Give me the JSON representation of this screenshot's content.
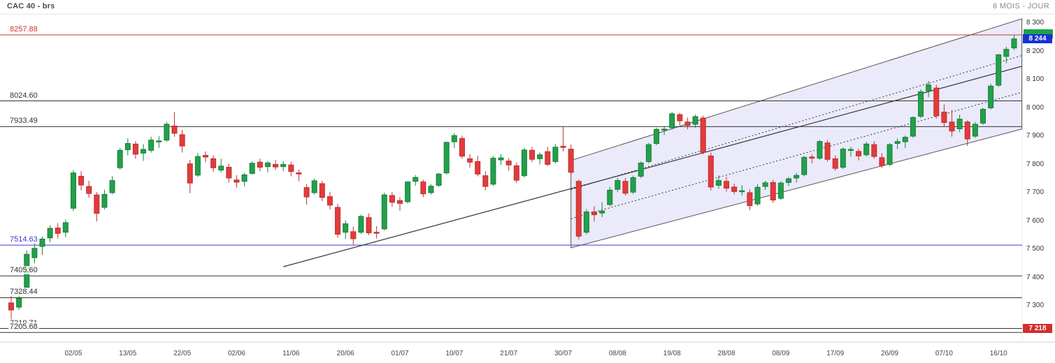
{
  "header": {
    "title": "CAC 40 - brs",
    "timeframe": "6 MOIS - JOUR"
  },
  "chart_data": {
    "type": "candlestick",
    "title": "CAC 40 - brs",
    "period": "6 MOIS",
    "interval": "JOUR",
    "last_price": 8244,
    "ylim": [
      7180,
      8310
    ],
    "colors": {
      "up": "#23a04a",
      "up_edge": "#17813b",
      "down": "#e23b3b",
      "down_edge": "#c02f2f"
    },
    "yticks": [
      {
        "label": "8 300",
        "value": 8300
      },
      {
        "label": "8 200",
        "value": 8200
      },
      {
        "label": "8 100",
        "value": 8100
      },
      {
        "label": "8 000",
        "value": 8000
      },
      {
        "label": "7 900",
        "value": 7900
      },
      {
        "label": "7 800",
        "value": 7800
      },
      {
        "label": "7 700",
        "value": 7700
      },
      {
        "label": "7 600",
        "value": 7600
      },
      {
        "label": "7 500",
        "value": 7500
      },
      {
        "label": "7 400",
        "value": 7400
      },
      {
        "label": "7 300",
        "value": 7300
      }
    ],
    "xticks": [
      "02/05",
      "13/05",
      "22/05",
      "02/06",
      "11/06",
      "20/06",
      "01/07",
      "10/07",
      "21/07",
      "30/07",
      "08/08",
      "19/08",
      "28/08",
      "08/09",
      "17/09",
      "26/09",
      "07/10",
      "16/10"
    ],
    "levels": [
      {
        "label": "8257.88",
        "value": 8257.88,
        "color": "#cc3333"
      },
      {
        "label": "8024.60",
        "value": 8024.6,
        "color": "#333333"
      },
      {
        "label": "7933.49",
        "value": 7933.49,
        "color": "#333333"
      },
      {
        "label": "7514.63",
        "value": 7514.63,
        "color": "#3a3acc"
      },
      {
        "label": "7405.60",
        "value": 7405.6,
        "color": "#333333"
      },
      {
        "label": "7328.44",
        "value": 7328.44,
        "color": "#333333"
      },
      {
        "label": "7219.71",
        "value": 7219.71,
        "color": "#333333"
      },
      {
        "label": "7205.68",
        "value": 7205.68,
        "color": "#333333"
      }
    ],
    "channel": {
      "i1": 72,
      "i2": 130,
      "bottom1": 7505,
      "top1": 7814,
      "bottom2": 7925,
      "top2": 8315,
      "dividers": [
        0.3333,
        0.6667
      ],
      "fill": "rgba(208,208,244,0.45)",
      "border": "#555555"
    },
    "trendline": {
      "i1": 35,
      "p1": 7438,
      "i2": 130,
      "p2": 8147,
      "color": "#333333"
    },
    "badges": {
      "last": {
        "label": "8 244",
        "value": 8244,
        "color": "#1532d6"
      },
      "low": {
        "label": "7 218",
        "value": 7218,
        "color": "#d22f2f"
      },
      "prev_marker": {
        "label": "",
        "value": 8262,
        "color": "#1ba24b"
      }
    },
    "candles": [
      [
        "17/04",
        7310,
        7335,
        7250,
        7285
      ],
      [
        "22/04",
        7295,
        7365,
        7285,
        7326
      ],
      [
        "23/04",
        7365,
        7495,
        7355,
        7482
      ],
      [
        "24/04",
        7470,
        7525,
        7450,
        7503
      ],
      [
        "25/04",
        7510,
        7545,
        7480,
        7536
      ],
      [
        "28/04",
        7540,
        7585,
        7525,
        7574
      ],
      [
        "29/04",
        7575,
        7592,
        7538,
        7556
      ],
      [
        "30/04",
        7560,
        7605,
        7542,
        7594
      ],
      [
        "02/05",
        7645,
        7780,
        7635,
        7770
      ],
      [
        "05/05",
        7758,
        7776,
        7708,
        7727
      ],
      [
        "06/05",
        7722,
        7742,
        7682,
        7697
      ],
      [
        "07/05",
        7692,
        7702,
        7598,
        7627
      ],
      [
        "08/05",
        7648,
        7710,
        7640,
        7694
      ],
      [
        "09/05",
        7700,
        7758,
        7694,
        7743
      ],
      [
        "12/05",
        7788,
        7858,
        7782,
        7850
      ],
      [
        "13/05",
        7852,
        7892,
        7832,
        7874
      ],
      [
        "14/05",
        7872,
        7882,
        7820,
        7836
      ],
      [
        "15/05",
        7840,
        7872,
        7812,
        7853
      ],
      [
        "16/05",
        7850,
        7898,
        7842,
        7886
      ],
      [
        "19/05",
        7880,
        7900,
        7858,
        7883
      ],
      [
        "20/05",
        7886,
        7950,
        7880,
        7942
      ],
      [
        "21/05",
        7936,
        7985,
        7898,
        7910
      ],
      [
        "22/05",
        7905,
        7922,
        7842,
        7865
      ],
      [
        "23/05",
        7802,
        7816,
        7698,
        7734
      ],
      [
        "26/05",
        7762,
        7840,
        7756,
        7828
      ],
      [
        "27/05",
        7832,
        7846,
        7808,
        7826
      ],
      [
        "28/05",
        7820,
        7832,
        7774,
        7788
      ],
      [
        "29/05",
        7780,
        7820,
        7772,
        7794
      ],
      [
        "30/05",
        7790,
        7802,
        7736,
        7752
      ],
      [
        "02/06",
        7745,
        7762,
        7718,
        7737
      ],
      [
        "03/06",
        7740,
        7770,
        7722,
        7763
      ],
      [
        "04/06",
        7768,
        7810,
        7764,
        7804
      ],
      [
        "05/06",
        7808,
        7820,
        7776,
        7790
      ],
      [
        "06/06",
        7792,
        7812,
        7772,
        7805
      ],
      [
        "09/06",
        7800,
        7816,
        7780,
        7791
      ],
      [
        "10/06",
        7792,
        7812,
        7776,
        7800
      ],
      [
        "11/06",
        7798,
        7810,
        7758,
        7775
      ],
      [
        "12/06",
        7770,
        7782,
        7740,
        7766
      ],
      [
        "13/06",
        7718,
        7730,
        7658,
        7685
      ],
      [
        "16/06",
        7700,
        7750,
        7694,
        7742
      ],
      [
        "17/06",
        7732,
        7742,
        7670,
        7683
      ],
      [
        "18/06",
        7686,
        7702,
        7640,
        7656
      ],
      [
        "19/06",
        7648,
        7660,
        7540,
        7553
      ],
      [
        "20/06",
        7560,
        7602,
        7536,
        7590
      ],
      [
        "23/06",
        7562,
        7580,
        7516,
        7537
      ],
      [
        "24/06",
        7560,
        7622,
        7554,
        7616
      ],
      [
        "25/06",
        7612,
        7626,
        7550,
        7558
      ],
      [
        "26/06",
        7560,
        7582,
        7538,
        7557
      ],
      [
        "27/06",
        7572,
        7700,
        7566,
        7692
      ],
      [
        "30/06",
        7690,
        7702,
        7650,
        7666
      ],
      [
        "01/07",
        7672,
        7684,
        7636,
        7662
      ],
      [
        "02/07",
        7668,
        7740,
        7662,
        7738
      ],
      [
        "03/07",
        7740,
        7762,
        7724,
        7754
      ],
      [
        "04/07",
        7738,
        7746,
        7684,
        7696
      ],
      [
        "07/07",
        7700,
        7730,
        7694,
        7723
      ],
      [
        "08/07",
        7726,
        7770,
        7720,
        7766
      ],
      [
        "09/07",
        7770,
        7880,
        7764,
        7878
      ],
      [
        "10/07",
        7880,
        7910,
        7858,
        7902
      ],
      [
        "11/07",
        7892,
        7902,
        7820,
        7829
      ],
      [
        "14/07",
        7820,
        7836,
        7788,
        7808
      ],
      [
        "15/07",
        7810,
        7830,
        7758,
        7766
      ],
      [
        "16/07",
        7760,
        7776,
        7708,
        7722
      ],
      [
        "17/07",
        7730,
        7830,
        7724,
        7822
      ],
      [
        "18/07",
        7816,
        7836,
        7798,
        7823
      ],
      [
        "21/07",
        7812,
        7822,
        7778,
        7798
      ],
      [
        "22/07",
        7795,
        7806,
        7734,
        7744
      ],
      [
        "23/07",
        7760,
        7858,
        7754,
        7851
      ],
      [
        "24/07",
        7850,
        7862,
        7808,
        7818
      ],
      [
        "25/07",
        7820,
        7842,
        7800,
        7834
      ],
      [
        "28/07",
        7845,
        7862,
        7794,
        7800
      ],
      [
        "29/07",
        7810,
        7872,
        7804,
        7861
      ],
      [
        "30/07",
        7864,
        7935,
        7846,
        7860
      ],
      [
        "31/07",
        7854,
        7870,
        7764,
        7772
      ],
      [
        "01/08",
        7740,
        7746,
        7535,
        7546
      ],
      [
        "04/08",
        7560,
        7642,
        7552,
        7632
      ],
      [
        "05/08",
        7632,
        7652,
        7598,
        7622
      ],
      [
        "06/08",
        7628,
        7666,
        7614,
        7635
      ],
      [
        "07/08",
        7658,
        7720,
        7652,
        7709
      ],
      [
        "08/08",
        7712,
        7752,
        7702,
        7743
      ],
      [
        "11/08",
        7740,
        7752,
        7690,
        7698
      ],
      [
        "12/08",
        7702,
        7760,
        7696,
        7753
      ],
      [
        "13/08",
        7758,
        7810,
        7752,
        7805
      ],
      [
        "14/08",
        7810,
        7876,
        7804,
        7870
      ],
      [
        "15/08",
        7874,
        7930,
        7868,
        7924
      ],
      [
        "18/08",
        7922,
        7936,
        7904,
        7925
      ],
      [
        "19/08",
        7930,
        7985,
        7924,
        7979
      ],
      [
        "20/08",
        7976,
        7982,
        7938,
        7954
      ],
      [
        "21/08",
        7950,
        7966,
        7924,
        7938
      ],
      [
        "22/08",
        7942,
        7976,
        7930,
        7969
      ],
      [
        "25/08",
        7964,
        7972,
        7836,
        7843
      ],
      [
        "26/08",
        7830,
        7842,
        7708,
        7720
      ],
      [
        "27/08",
        7726,
        7762,
        7714,
        7743
      ],
      [
        "28/08",
        7740,
        7756,
        7704,
        7716
      ],
      [
        "29/08",
        7720,
        7732,
        7694,
        7704
      ],
      [
        "01/09",
        7706,
        7726,
        7690,
        7707
      ],
      [
        "02/09",
        7700,
        7712,
        7638,
        7654
      ],
      [
        "03/09",
        7660,
        7730,
        7654,
        7719
      ],
      [
        "04/09",
        7722,
        7742,
        7710,
        7735
      ],
      [
        "05/09",
        7736,
        7746,
        7664,
        7674
      ],
      [
        "08/09",
        7680,
        7740,
        7674,
        7734
      ],
      [
        "09/09",
        7736,
        7756,
        7724,
        7749
      ],
      [
        "10/09",
        7752,
        7770,
        7736,
        7761
      ],
      [
        "11/09",
        7764,
        7830,
        7758,
        7825
      ],
      [
        "12/09",
        7826,
        7836,
        7804,
        7825
      ],
      [
        "15/09",
        7822,
        7886,
        7816,
        7881
      ],
      [
        "16/09",
        7876,
        7886,
        7810,
        7818
      ],
      [
        "17/09",
        7820,
        7832,
        7778,
        7786
      ],
      [
        "18/09",
        7790,
        7860,
        7784,
        7854
      ],
      [
        "19/09",
        7850,
        7862,
        7828,
        7853
      ],
      [
        "22/09",
        7846,
        7856,
        7814,
        7830
      ],
      [
        "23/09",
        7834,
        7880,
        7828,
        7872
      ],
      [
        "24/09",
        7870,
        7882,
        7820,
        7828
      ],
      [
        "25/09",
        7824,
        7840,
        7788,
        7796
      ],
      [
        "26/09",
        7800,
        7876,
        7794,
        7870
      ],
      [
        "29/09",
        7874,
        7892,
        7854,
        7881
      ],
      [
        "30/09",
        7880,
        7902,
        7858,
        7896
      ],
      [
        "01/10",
        7900,
        7970,
        7894,
        7966
      ],
      [
        "02/10",
        7970,
        8065,
        7964,
        8057
      ],
      [
        "03/10",
        8060,
        8095,
        8038,
        8081
      ],
      [
        "06/10",
        8070,
        8082,
        7962,
        7972
      ],
      [
        "07/10",
        7985,
        8012,
        7934,
        7948
      ],
      [
        "08/10",
        7950,
        7992,
        7898,
        7918
      ],
      [
        "09/10",
        7926,
        7976,
        7914,
        7960
      ],
      [
        "10/10",
        7950,
        7956,
        7865,
        7890
      ],
      [
        "13/10",
        7900,
        7950,
        7894,
        7942
      ],
      [
        "14/10",
        7946,
        8000,
        7940,
        7995
      ],
      [
        "15/10",
        8000,
        8085,
        7994,
        8077
      ],
      [
        "16/10",
        8080,
        8190,
        8074,
        8188
      ],
      [
        "17/10",
        8182,
        8216,
        8158,
        8207
      ],
      [
        "20/10",
        8212,
        8256,
        8204,
        8244
      ]
    ]
  }
}
